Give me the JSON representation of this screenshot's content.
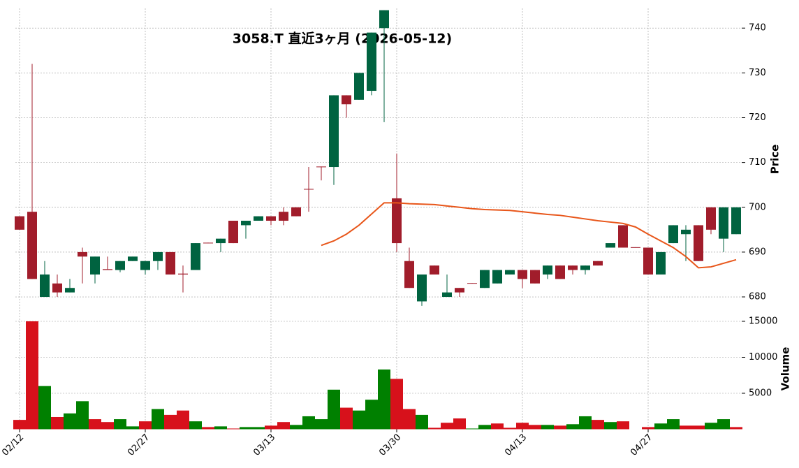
{
  "chart_data": [
    {
      "type": "candlestick",
      "title": "3058.T  直近3ヶ月  (2026-05-12)",
      "ylabel": "Price",
      "categories": [
        "02/12",
        null,
        null,
        null,
        null,
        null,
        null,
        null,
        null,
        null,
        "02/27",
        null,
        null,
        null,
        null,
        null,
        null,
        null,
        null,
        null,
        "03/13",
        null,
        null,
        null,
        null,
        null,
        null,
        null,
        null,
        null,
        "03/30",
        null,
        null,
        null,
        null,
        null,
        null,
        null,
        null,
        null,
        "04/13",
        null,
        null,
        null,
        null,
        null,
        null,
        null,
        null,
        null,
        "04/27",
        null,
        null,
        null,
        null,
        null,
        null,
        null
      ],
      "open": [
        698,
        699,
        680,
        683,
        681,
        690,
        685,
        686.2,
        686,
        688,
        686,
        688,
        690,
        685.2,
        686,
        692.1,
        692,
        697,
        696,
        697,
        698,
        699,
        700,
        704.1,
        709.1,
        709,
        725,
        724,
        726,
        740,
        702,
        688,
        679,
        687,
        680,
        682,
        683.1,
        682,
        683,
        685,
        686,
        686,
        685,
        687,
        687,
        686,
        688,
        691,
        696,
        691.1,
        691,
        685,
        692,
        694,
        696,
        700,
        693,
        694
      ],
      "high": [
        698,
        732,
        688,
        685,
        684,
        691,
        689,
        689,
        688,
        689,
        688,
        690,
        690,
        687,
        692,
        692.1,
        693,
        697,
        697,
        698,
        698,
        700,
        700,
        709,
        709.1,
        725,
        725,
        730,
        739,
        744,
        712,
        691,
        685,
        687,
        685,
        682,
        683.1,
        686,
        686,
        686,
        686,
        686,
        687,
        687,
        687,
        687,
        688,
        692,
        696,
        691.1,
        691,
        690,
        696,
        696,
        696,
        700,
        700,
        700
      ],
      "low": [
        695,
        684,
        680,
        680,
        681,
        683,
        683,
        686,
        685.5,
        688,
        685,
        686,
        685,
        681,
        686,
        692,
        690,
        692,
        693,
        697,
        696,
        696,
        698,
        699,
        706,
        705,
        720,
        724,
        725,
        719,
        690,
        682,
        678,
        685,
        680,
        680,
        683,
        682,
        683,
        685,
        682,
        683,
        684,
        684,
        685,
        685,
        687,
        691,
        691,
        691,
        685,
        685,
        692,
        688,
        688,
        694,
        690,
        694
      ],
      "close": [
        695,
        684,
        685,
        681,
        682,
        689,
        689,
        686,
        688,
        689,
        688,
        690,
        685,
        685,
        692,
        692,
        693,
        692,
        697,
        698,
        697,
        697,
        698,
        704,
        709,
        725,
        723,
        730,
        739,
        744,
        692,
        682,
        685,
        685,
        681,
        681,
        683,
        686,
        686,
        686,
        684,
        683,
        687,
        684,
        686,
        687,
        687,
        692,
        691,
        691,
        685,
        690,
        696,
        695,
        688,
        695,
        700,
        700
      ],
      "up_color": "#006340",
      "down_color": "#a11d2b",
      "ma": {
        "color": "#e8561a",
        "values": [
          null,
          null,
          null,
          null,
          null,
          null,
          null,
          null,
          null,
          null,
          null,
          null,
          null,
          null,
          null,
          null,
          null,
          null,
          null,
          null,
          null,
          null,
          null,
          null,
          691.5,
          692.5,
          694,
          696,
          698.5,
          701,
          701,
          700.8,
          700.7,
          700.6,
          700.3,
          700,
          699.7,
          699.5,
          699.4,
          699.3,
          699,
          698.7,
          698.4,
          698.2,
          697.8,
          697.4,
          697,
          696.7,
          696.4,
          695.6,
          694,
          692.5,
          691,
          689,
          686.5,
          686.7,
          687.5,
          688.3
        ]
      },
      "ylim": [
        677.2,
        744.4
      ],
      "yticks": [
        680,
        690,
        700,
        710,
        720,
        730,
        740
      ],
      "grid": true
    },
    {
      "type": "bar",
      "ylabel": "Volume",
      "values": [
        1300,
        15000,
        6000,
        1700,
        2200,
        3900,
        1400,
        1000,
        1400,
        400,
        1100,
        2800,
        2000,
        2600,
        1100,
        300,
        400,
        100,
        300,
        300,
        500,
        1000,
        600,
        1800,
        1400,
        5500,
        3000,
        2600,
        4100,
        8300,
        7000,
        2800,
        2000,
        200,
        900,
        1500,
        100,
        600,
        800,
        200,
        900,
        600,
        600,
        500,
        700,
        1800,
        1300,
        1000,
        1100,
        null,
        300,
        800,
        1400,
        500,
        500,
        900,
        1400,
        300
      ],
      "up_color": "#008000",
      "down_color": "#d7111b",
      "ylim": [
        0,
        16650
      ],
      "yticks": [
        5000,
        10000,
        15000
      ],
      "grid": true
    }
  ]
}
